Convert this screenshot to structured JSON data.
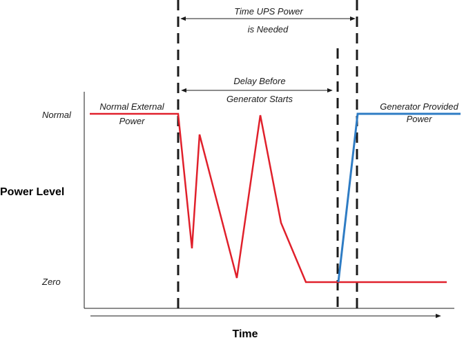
{
  "diagram": {
    "y_axis_label": "Power Level",
    "x_axis_label": "Time",
    "level_labels": {
      "normal": "Normal",
      "zero": "Zero"
    },
    "annotations": {
      "ups_needed_line1": "Time UPS Power",
      "ups_needed_line2": "is Needed",
      "delay_line1": "Delay Before",
      "delay_line2": "Generator Starts",
      "external_line1": "Normal External",
      "external_line2": "Power",
      "generator_line1": "Generator Provided",
      "generator_line2": "Power"
    },
    "colors": {
      "utility_trace": "#e0202b",
      "generator_trace": "#2e7cc4",
      "lines": "#1a1a1a"
    }
  }
}
